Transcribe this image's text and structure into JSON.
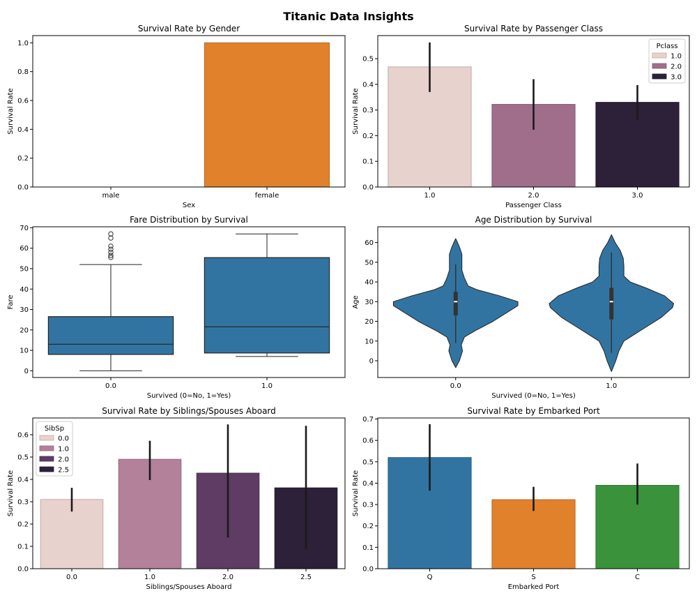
{
  "figure": {
    "title": "Titanic Data Insights"
  },
  "chart_data": [
    {
      "id": "gender",
      "type": "bar",
      "title": "Survival Rate by Gender",
      "xlabel": "Sex",
      "ylabel": "Survival Rate",
      "categories": [
        "male",
        "female"
      ],
      "values": [
        0.0,
        1.0
      ],
      "colors": [
        "#3274a1",
        "#e1812c"
      ],
      "ylim": [
        0,
        1.05
      ],
      "yticks": [
        0.0,
        0.2,
        0.4,
        0.6,
        0.8,
        1.0
      ],
      "ytick_labels": [
        "0.0",
        "0.2",
        "0.4",
        "0.6",
        "0.8",
        "1.0"
      ],
      "grid": false
    },
    {
      "id": "pclass",
      "type": "bar",
      "title": "Survival Rate by Passenger Class",
      "xlabel": "Passenger Class",
      "ylabel": "Survival Rate",
      "categories": [
        "1.0",
        "2.0",
        "3.0"
      ],
      "values": [
        0.468,
        0.322,
        0.33
      ],
      "ci_low": [
        0.37,
        0.223,
        0.263
      ],
      "ci_high": [
        0.563,
        0.42,
        0.397
      ],
      "colors": [
        "#e8d2cd",
        "#a06e8b",
        "#2d2039"
      ],
      "ylim": [
        0,
        0.59
      ],
      "yticks": [
        0.0,
        0.1,
        0.2,
        0.3,
        0.4,
        0.5
      ],
      "ytick_labels": [
        "0.0",
        "0.1",
        "0.2",
        "0.3",
        "0.4",
        "0.5"
      ],
      "legend": {
        "title": "Pclass",
        "entries": [
          "1.0",
          "2.0",
          "3.0"
        ],
        "placement": "top-right"
      },
      "grid": false
    },
    {
      "id": "fare",
      "type": "box",
      "title": "Fare Distribution by Survival",
      "xlabel": "Survived (0=No, 1=Yes)",
      "ylabel": "Fare",
      "categories": [
        "0.0",
        "1.0"
      ],
      "boxes": [
        {
          "whisker_low": 0,
          "q1": 8,
          "median": 13,
          "q3": 26.5,
          "whisker_high": 52,
          "outliers": [
            55.5,
            56.5,
            58,
            59.5,
            61,
            65,
            67
          ]
        },
        {
          "whisker_low": 7,
          "q1": 8.7,
          "median": 21.5,
          "q3": 55.4,
          "whisker_high": 67,
          "outliers": []
        }
      ],
      "color": "#3274a1",
      "ylim": [
        -3.3,
        70.5
      ],
      "yticks": [
        0,
        10,
        20,
        30,
        40,
        50,
        60,
        70
      ],
      "ytick_labels": [
        "0",
        "10",
        "20",
        "30",
        "40",
        "50",
        "60",
        "70"
      ],
      "grid": false
    },
    {
      "id": "age",
      "type": "violin",
      "title": "Age Distribution by Survival",
      "xlabel": "Survived (0=No, 1=Yes)",
      "ylabel": "Age",
      "categories": [
        "0.0",
        "1.0"
      ],
      "violins": [
        {
          "min": -3.5,
          "max": 62,
          "whisker_low": 9,
          "q1": 23,
          "median": 30,
          "q3": 35,
          "whisker_high": 49,
          "profile": [
            [
              -3.5,
              0
            ],
            [
              0,
              0.06
            ],
            [
              5,
              0.11
            ],
            [
              8,
              0.09
            ],
            [
              12,
              0.14
            ],
            [
              15,
              0.3
            ],
            [
              20,
              0.6
            ],
            [
              25,
              0.85
            ],
            [
              28,
              1.0
            ],
            [
              30,
              1.0
            ],
            [
              33,
              0.7
            ],
            [
              36,
              0.35
            ],
            [
              38,
              0.2
            ],
            [
              42,
              0.14
            ],
            [
              46,
              0.1
            ],
            [
              50,
              0.1
            ],
            [
              54,
              0.1
            ],
            [
              57,
              0.07
            ],
            [
              60,
              0.03
            ],
            [
              62,
              0
            ]
          ]
        },
        {
          "min": -5.5,
          "max": 64,
          "whisker_low": 4,
          "q1": 21,
          "median": 30,
          "q3": 37,
          "whisker_high": 55,
          "profile": [
            [
              -5.5,
              0
            ],
            [
              0,
              0.07
            ],
            [
              5,
              0.12
            ],
            [
              10,
              0.2
            ],
            [
              13,
              0.35
            ],
            [
              17,
              0.55
            ],
            [
              22,
              0.8
            ],
            [
              27,
              0.98
            ],
            [
              29,
              1.0
            ],
            [
              33,
              0.85
            ],
            [
              37,
              0.55
            ],
            [
              40,
              0.3
            ],
            [
              43,
              0.2
            ],
            [
              48,
              0.2
            ],
            [
              52,
              0.19
            ],
            [
              56,
              0.14
            ],
            [
              60,
              0.06
            ],
            [
              64,
              0
            ]
          ]
        }
      ],
      "color": "#3274a1",
      "ylim": [
        -8.5,
        68
      ],
      "yticks": [
        0,
        10,
        20,
        30,
        40,
        50,
        60
      ],
      "ytick_labels": [
        "0",
        "10",
        "20",
        "30",
        "40",
        "50",
        "60"
      ],
      "grid": false
    },
    {
      "id": "sibsp",
      "type": "bar",
      "title": "Survival Rate by Siblings/Spouses Aboard",
      "xlabel": "Siblings/Spouses Aboard",
      "ylabel": "Survival Rate",
      "categories": [
        "0.0",
        "1.0",
        "2.0",
        "2.5"
      ],
      "values": [
        0.31,
        0.49,
        0.428,
        0.362
      ],
      "ci_low": [
        0.256,
        0.397,
        0.14,
        0.088
      ],
      "ci_high": [
        0.362,
        0.573,
        0.646,
        0.64
      ],
      "colors": [
        "#e8d2cd",
        "#b3819a",
        "#5e3c63",
        "#2d2039"
      ],
      "ylim": [
        0,
        0.675
      ],
      "yticks": [
        0.0,
        0.1,
        0.2,
        0.3,
        0.4,
        0.5,
        0.6
      ],
      "ytick_labels": [
        "0.0",
        "0.1",
        "0.2",
        "0.3",
        "0.4",
        "0.5",
        "0.6"
      ],
      "legend": {
        "title": "SibSp",
        "entries": [
          "0.0",
          "1.0",
          "2.0",
          "2.5"
        ],
        "placement": "top-left"
      },
      "grid": false
    },
    {
      "id": "embarked",
      "type": "bar",
      "title": "Survival Rate by Embarked Port",
      "xlabel": "Embarked Port",
      "ylabel": "Survival Rate",
      "categories": [
        "Q",
        "S",
        "C"
      ],
      "values": [
        0.52,
        0.323,
        0.39
      ],
      "ci_low": [
        0.365,
        0.27,
        0.3
      ],
      "ci_high": [
        0.676,
        0.383,
        0.492
      ],
      "colors": [
        "#3274a1",
        "#e1812c",
        "#3a923a"
      ],
      "ylim": [
        0,
        0.705
      ],
      "yticks": [
        0.0,
        0.1,
        0.2,
        0.3,
        0.4,
        0.5,
        0.6,
        0.7
      ],
      "ytick_labels": [
        "0.0",
        "0.1",
        "0.2",
        "0.3",
        "0.4",
        "0.5",
        "0.6",
        "0.7"
      ],
      "grid": false
    }
  ]
}
